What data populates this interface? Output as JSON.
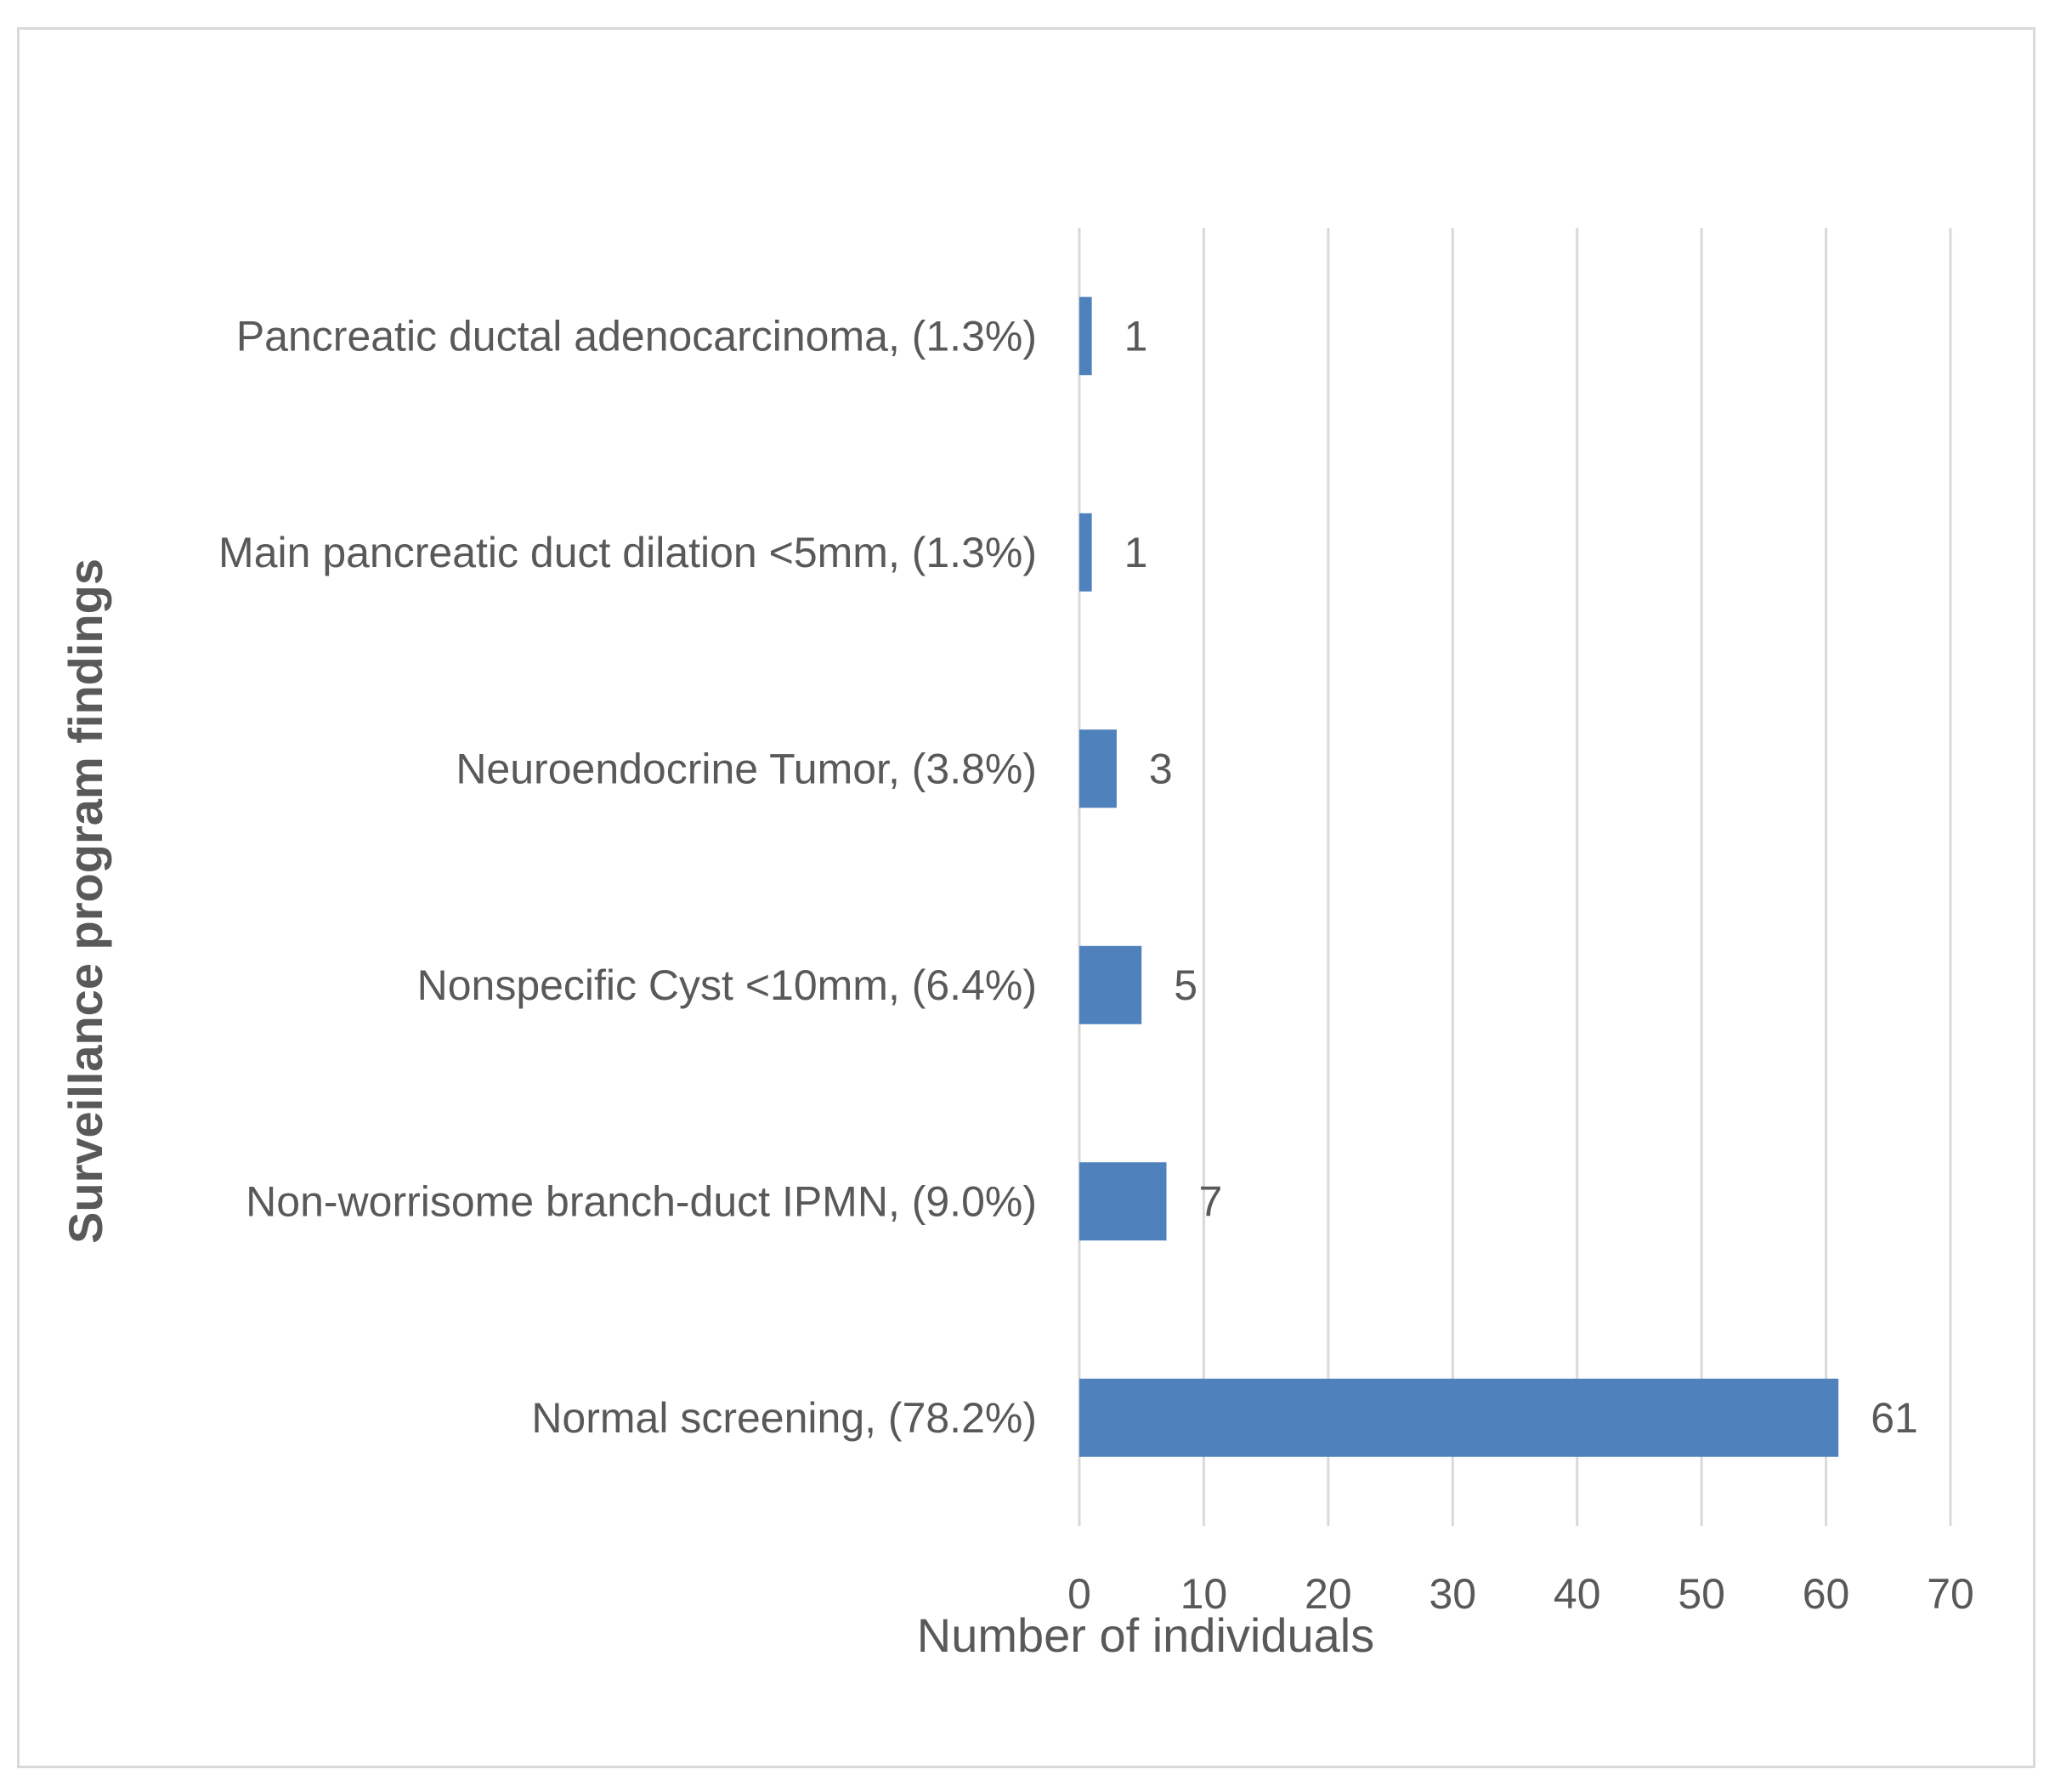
{
  "chart_data": {
    "type": "bar",
    "orientation": "horizontal",
    "title": "",
    "xlabel": "Number of individuals",
    "ylabel": "Surveillance program findings",
    "categories": [
      "Pancreatic ductal adenocarcinoma, (1.3%)",
      "Main pancreatic duct dilation <5mm, (1.3%)",
      "Neuroendocrine Tumor, (3.8%)",
      "Nonspecific Cyst <10mm, (6.4%)",
      "Non-worrisome branch-duct IPMN, (9.0%)",
      "Normal screening, (78.2%)"
    ],
    "values": [
      1,
      1,
      3,
      5,
      7,
      61
    ],
    "data_labels": [
      "1",
      "1",
      "3",
      "5",
      "7",
      "61"
    ],
    "xlim": [
      0,
      70
    ],
    "xticks": [
      "0",
      "10",
      "20",
      "30",
      "40",
      "50",
      "60",
      "70"
    ],
    "grid": "vertical",
    "bar_color": "#4f81bd",
    "grid_color": "#d9d9d9",
    "text_color": "#595959"
  }
}
